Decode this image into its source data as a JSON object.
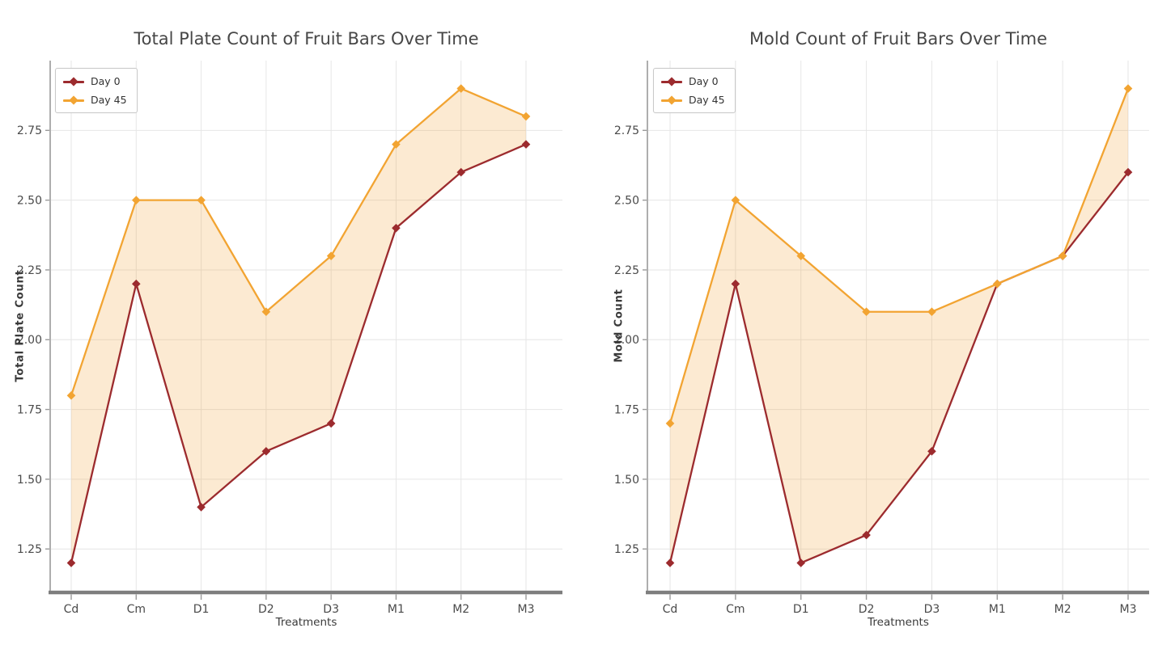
{
  "colors": {
    "background": "#ffffff",
    "grid": "#e6e6e6",
    "spine": "#9a9a9a",
    "bottom_spine": "#7e7e7e",
    "tick_text": "#4a4a4a",
    "title_text": "#474747",
    "day0": "#9c2b2e",
    "day45": "#f2a432",
    "band_fill": "rgba(240,161,50,0.22)"
  },
  "chart_data": [
    {
      "type": "line",
      "title": "Total Plate Count of Fruit Bars Over Time",
      "xlabel": "Treatments",
      "ylabel": "Total Plate Count",
      "categories": [
        "Cd",
        "Cm",
        "D1",
        "D2",
        "D3",
        "M1",
        "M2",
        "M3"
      ],
      "series": [
        {
          "name": "Day 0",
          "color": "#9c2b2e",
          "marker": "diamond",
          "values": [
            1.2,
            2.2,
            1.4,
            1.6,
            1.7,
            2.4,
            2.6,
            2.7
          ]
        },
        {
          "name": "Day 45",
          "color": "#f2a432",
          "marker": "diamond",
          "values": [
            1.8,
            2.5,
            2.5,
            2.1,
            2.3,
            2.7,
            2.9,
            2.8
          ]
        }
      ],
      "fill_between": {
        "enabled": true,
        "between": [
          "Day 0",
          "Day 45"
        ],
        "color": "rgba(240,161,50,0.22)"
      },
      "yticks": [
        1.25,
        1.5,
        1.75,
        2.0,
        2.25,
        2.5,
        2.75
      ],
      "ytick_labels": [
        "1.25",
        "1.50",
        "1.75",
        "2.00",
        "2.25",
        "2.50",
        "2.75"
      ],
      "ylim": [
        1.1,
        3.0
      ],
      "grid": true,
      "legend_position": "upper left"
    },
    {
      "type": "line",
      "title": "Mold Count of Fruit Bars Over Time",
      "xlabel": "Treatments",
      "ylabel": "Mold Count",
      "categories": [
        "Cd",
        "Cm",
        "D1",
        "D2",
        "D3",
        "M1",
        "M2",
        "M3"
      ],
      "series": [
        {
          "name": "Day 0",
          "color": "#9c2b2e",
          "marker": "diamond",
          "values": [
            1.2,
            2.2,
            1.2,
            1.3,
            1.6,
            2.2,
            2.3,
            2.6
          ]
        },
        {
          "name": "Day 45",
          "color": "#f2a432",
          "marker": "diamond",
          "values": [
            1.7,
            2.5,
            2.3,
            2.1,
            2.1,
            2.2,
            2.3,
            2.9
          ]
        }
      ],
      "fill_between": {
        "enabled": true,
        "between": [
          "Day 0",
          "Day 45"
        ],
        "color": "rgba(240,161,50,0.22)"
      },
      "yticks": [
        1.25,
        1.5,
        1.75,
        2.0,
        2.25,
        2.5,
        2.75
      ],
      "ytick_labels": [
        "1.25",
        "1.50",
        "1.75",
        "2.00",
        "2.25",
        "2.50",
        "2.75"
      ],
      "ylim": [
        1.1,
        3.0
      ],
      "grid": true,
      "legend_position": "upper left"
    }
  ]
}
